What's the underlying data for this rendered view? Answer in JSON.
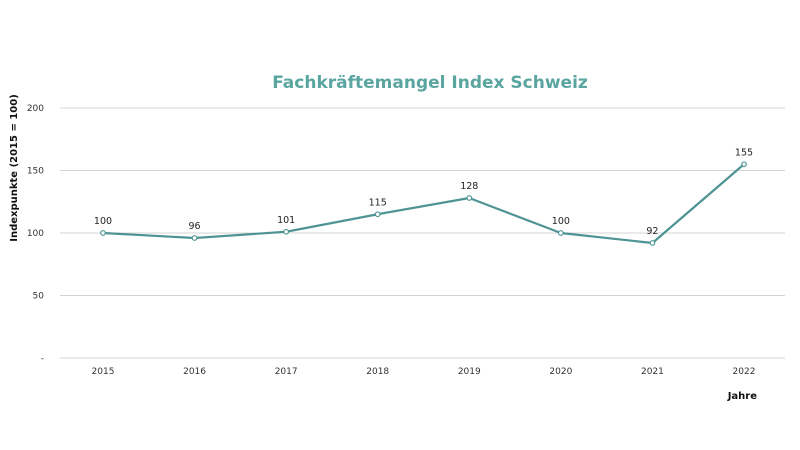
{
  "chart_data": {
    "type": "line",
    "title": "Fachkräftemangel Index Schweiz",
    "xlabel": "Jahre",
    "ylabel": "Indexpunkte (2015 = 100)",
    "categories": [
      "2015",
      "2016",
      "2017",
      "2018",
      "2019",
      "2020",
      "2021",
      "2022"
    ],
    "series": [
      {
        "values": [
          100,
          96,
          101,
          115,
          128,
          100,
          92,
          155
        ]
      }
    ],
    "data_labels": [
      "100",
      "96",
      "101",
      "115",
      "128",
      "100",
      "92",
      "155"
    ],
    "yticks": [
      0,
      50,
      100,
      150,
      200
    ],
    "ytick_labels": [
      "-",
      "50",
      "100",
      "150",
      "200"
    ],
    "ylim": [
      0,
      200
    ],
    "grid": true,
    "legend": "none",
    "colors": {
      "line": "#4f9494",
      "title": "#5aa5a0",
      "grid": "#d4d4d4"
    }
  }
}
